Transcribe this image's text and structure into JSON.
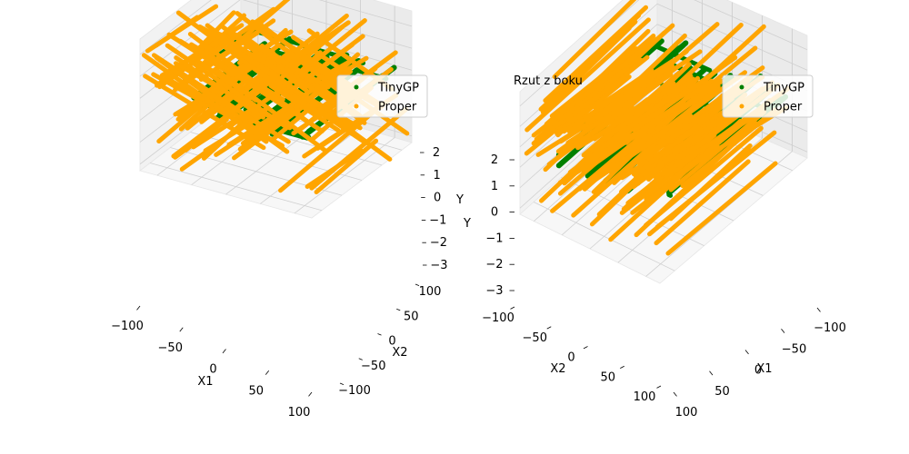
{
  "chart_data": [
    {
      "type": "scatter",
      "title": "",
      "xlabel": "X1",
      "ylabel": "X2",
      "zlabel": "Y",
      "xlim": [
        -100,
        100
      ],
      "ylim": [
        -100,
        100
      ],
      "zlim": [
        -3,
        2
      ],
      "x_ticks": [
        "−100",
        "−50",
        "0",
        "50",
        "100"
      ],
      "y_ticks": [
        "−100",
        "−50",
        "0",
        "50",
        "100"
      ],
      "z_ticks": [
        "−3",
        "−2",
        "−1",
        "0",
        "1",
        "2"
      ],
      "legend": {
        "position": "top-right",
        "entries": [
          "TinyGP",
          "Proper"
        ]
      },
      "series": [
        {
          "name": "TinyGP",
          "color": "#008000",
          "z": 0
        },
        {
          "name": "Proper",
          "color": "#ffa500",
          "z_range": [
            -3,
            2
          ]
        }
      ],
      "grid": true
    },
    {
      "type": "scatter",
      "title": "Rzut z boku",
      "xlabel": "X1",
      "ylabel": "X2",
      "zlabel": "Y",
      "xlim": [
        -100,
        100
      ],
      "ylim": [
        -100,
        100
      ],
      "zlim": [
        -3,
        2
      ],
      "x_ticks": [
        "100",
        "50",
        "0",
        "−50",
        "−100"
      ],
      "y_ticks": [
        "−100",
        "−50",
        "0",
        "50",
        "100"
      ],
      "z_ticks": [
        "−3",
        "−2",
        "−1",
        "0",
        "1",
        "2"
      ],
      "legend": {
        "position": "top-right",
        "entries": [
          "TinyGP",
          "Proper"
        ]
      },
      "series": [
        {
          "name": "TinyGP",
          "color": "#008000",
          "z": 0
        },
        {
          "name": "Proper",
          "color": "#ffa500",
          "z_range": [
            -3,
            2
          ]
        }
      ],
      "grid": true
    }
  ]
}
